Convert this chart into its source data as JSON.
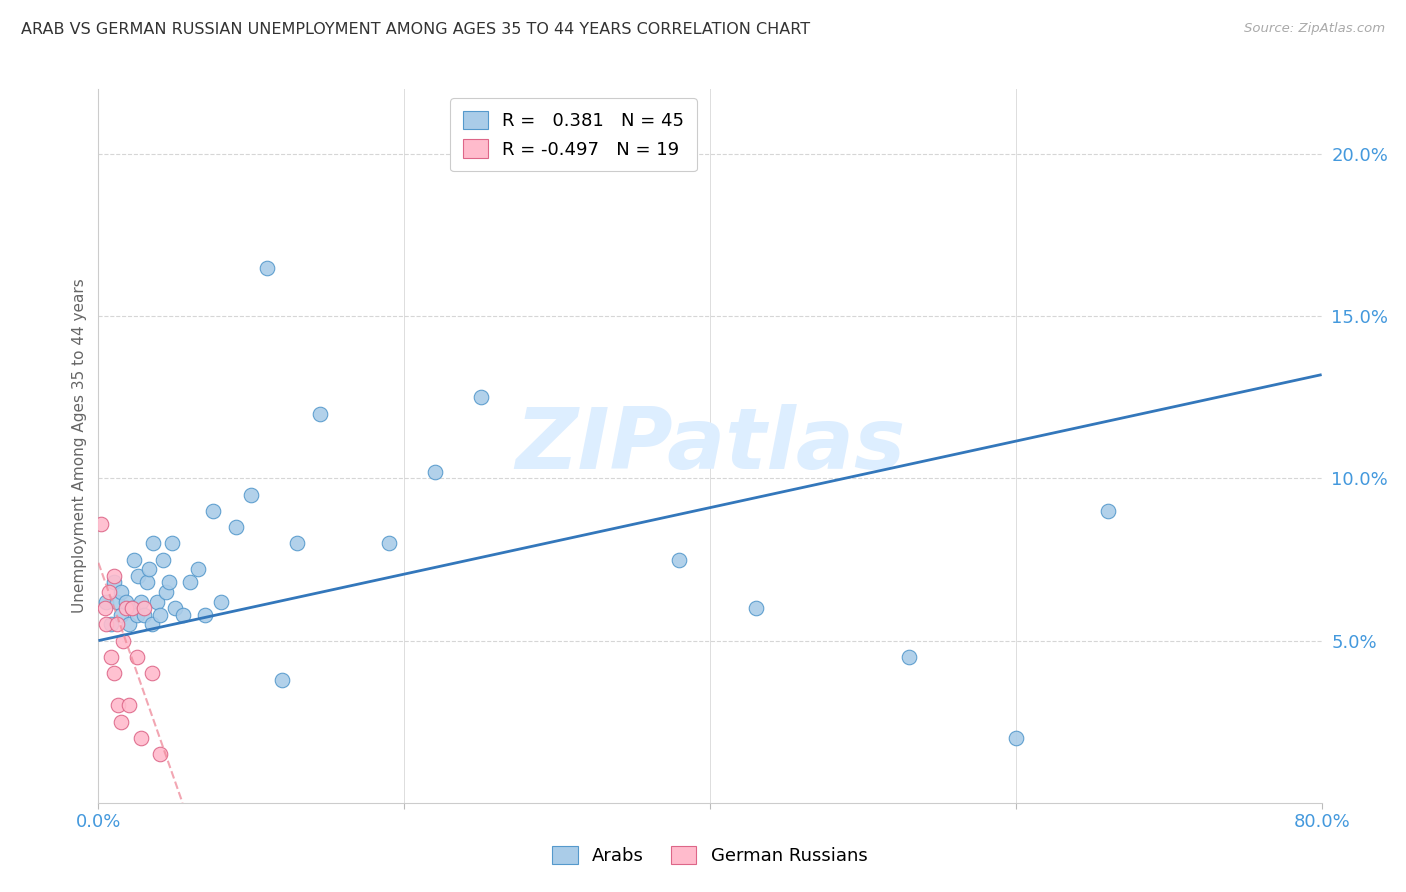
{
  "title": "ARAB VS GERMAN RUSSIAN UNEMPLOYMENT AMONG AGES 35 TO 44 YEARS CORRELATION CHART",
  "source": "Source: ZipAtlas.com",
  "ylabel": "Unemployment Among Ages 35 to 44 years",
  "xlim": [
    0.0,
    0.8
  ],
  "ylim": [
    0.0,
    0.22
  ],
  "xticks": [
    0.0,
    0.2,
    0.4,
    0.6,
    0.8
  ],
  "xtick_labels": [
    "0.0%",
    "",
    "",
    "",
    "80.0%"
  ],
  "yticks": [
    0.05,
    0.1,
    0.15,
    0.2
  ],
  "ytick_labels": [
    "5.0%",
    "10.0%",
    "15.0%",
    "20.0%"
  ],
  "arab_fill": "#aacce8",
  "arab_edge": "#5599cc",
  "gr_fill": "#ffbbcc",
  "gr_edge": "#dd6688",
  "trend_arab_color": "#3377bb",
  "trend_gr_color": "#ee8899",
  "legend_R_arab": "0.381",
  "legend_N_arab": "45",
  "legend_R_gr": "-0.497",
  "legend_N_gr": "19",
  "watermark": "ZIPatlas",
  "watermark_color": "#ddeeff",
  "arab_x": [
    0.005,
    0.008,
    0.01,
    0.012,
    0.015,
    0.015,
    0.018,
    0.02,
    0.022,
    0.023,
    0.025,
    0.026,
    0.028,
    0.03,
    0.032,
    0.033,
    0.035,
    0.036,
    0.038,
    0.04,
    0.042,
    0.044,
    0.046,
    0.048,
    0.05,
    0.055,
    0.06,
    0.065,
    0.07,
    0.075,
    0.08,
    0.09,
    0.1,
    0.11,
    0.12,
    0.13,
    0.145,
    0.19,
    0.22,
    0.25,
    0.38,
    0.43,
    0.53,
    0.6,
    0.66
  ],
  "arab_y": [
    0.062,
    0.055,
    0.068,
    0.062,
    0.058,
    0.065,
    0.062,
    0.055,
    0.06,
    0.075,
    0.058,
    0.07,
    0.062,
    0.058,
    0.068,
    0.072,
    0.055,
    0.08,
    0.062,
    0.058,
    0.075,
    0.065,
    0.068,
    0.08,
    0.06,
    0.058,
    0.068,
    0.072,
    0.058,
    0.09,
    0.062,
    0.085,
    0.095,
    0.165,
    0.038,
    0.08,
    0.12,
    0.08,
    0.102,
    0.125,
    0.075,
    0.06,
    0.045,
    0.02,
    0.09
  ],
  "gr_x": [
    0.002,
    0.004,
    0.005,
    0.007,
    0.008,
    0.01,
    0.01,
    0.012,
    0.013,
    0.015,
    0.016,
    0.018,
    0.02,
    0.022,
    0.025,
    0.028,
    0.03,
    0.035,
    0.04
  ],
  "gr_y": [
    0.086,
    0.06,
    0.055,
    0.065,
    0.045,
    0.07,
    0.04,
    0.055,
    0.03,
    0.025,
    0.05,
    0.06,
    0.03,
    0.06,
    0.045,
    0.02,
    0.06,
    0.04,
    0.015
  ],
  "arab_trend_x0": 0.0,
  "arab_trend_y0": 0.05,
  "arab_trend_x1": 0.8,
  "arab_trend_y1": 0.132,
  "gr_trend_x0": 0.0,
  "gr_trend_y0": 0.074,
  "gr_trend_x1": 0.055,
  "gr_trend_y1": 0.0
}
